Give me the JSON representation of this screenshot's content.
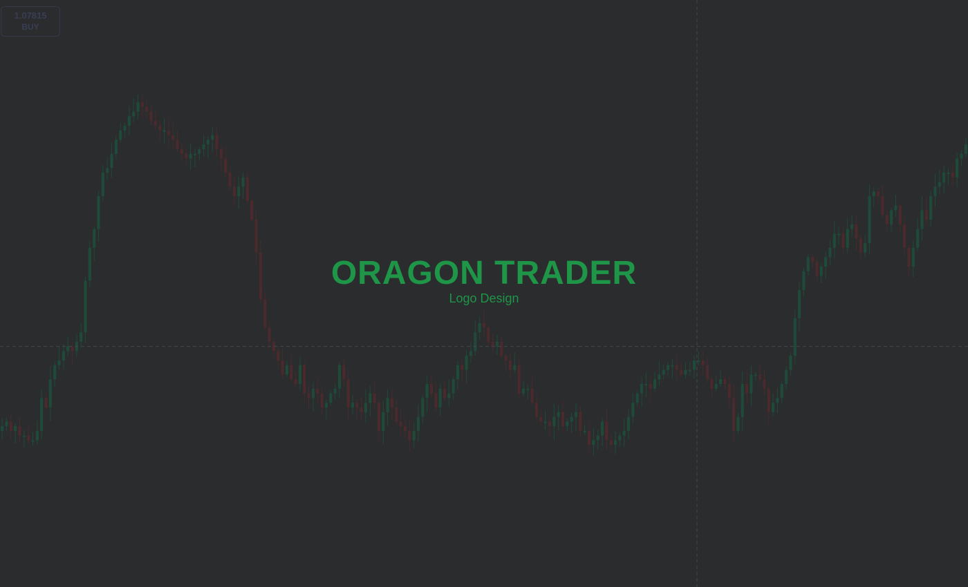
{
  "price_tag": {
    "price": "1.07815",
    "side": "BUY"
  },
  "logo": {
    "title": "ORAGON TRADER",
    "subtitle": "Logo Design"
  },
  "colors": {
    "background": "#2a2c2e",
    "logo": "#1f9548",
    "bull_candle": "#1f4a3a",
    "bear_candle": "#4a2a2c",
    "crosshair": "#44484c"
  },
  "chart_data": {
    "type": "candlestick",
    "title": "",
    "xlabel": "",
    "ylabel": "",
    "ylim": [
      0,
      100
    ],
    "crosshair": {
      "x_fraction": 0.72,
      "y_value": 38
    },
    "close": [
      21,
      22,
      20,
      21,
      19,
      19,
      18,
      18,
      20,
      27,
      25,
      31,
      34,
      35,
      37,
      38,
      37,
      39,
      41,
      52,
      59,
      63,
      70,
      75,
      76,
      79,
      82,
      84,
      85,
      87,
      88,
      90,
      89,
      88,
      86,
      85,
      84,
      84,
      83,
      82,
      80,
      79,
      78,
      79,
      79,
      80,
      81,
      82,
      83,
      80,
      78,
      75,
      72,
      70,
      72,
      74,
      69,
      65,
      58,
      48,
      42,
      39,
      37,
      35,
      32,
      34,
      31,
      30,
      34,
      28,
      27,
      29,
      28,
      25,
      26,
      28,
      29,
      34,
      31,
      25,
      26,
      25,
      24,
      26,
      28,
      26,
      20,
      24,
      27,
      25,
      22,
      21,
      20,
      18,
      20,
      23,
      27,
      30,
      28,
      25,
      29,
      27,
      28,
      31,
      34,
      33,
      36,
      37,
      41,
      43,
      42,
      39,
      38,
      39,
      36,
      35,
      33,
      34,
      28,
      29,
      29,
      26,
      23,
      22,
      22,
      21,
      23,
      24,
      21,
      22,
      23,
      24,
      20,
      20,
      17,
      18,
      19,
      22,
      18,
      17,
      18,
      19,
      20,
      23,
      26,
      28,
      30,
      30,
      29,
      31,
      32,
      33,
      34,
      34,
      33,
      32,
      33,
      33,
      35,
      35,
      34,
      31,
      29,
      30,
      31,
      30,
      27,
      20,
      23,
      30,
      28,
      32,
      32,
      31,
      29,
      24,
      26,
      27,
      30,
      33,
      36,
      44,
      50,
      54,
      57,
      56,
      53,
      55,
      57,
      59,
      62,
      62,
      59,
      63,
      64,
      61,
      58,
      60,
      70,
      71,
      70,
      66,
      64,
      67,
      68,
      64,
      59,
      55,
      59,
      63,
      67,
      65,
      70,
      72,
      73,
      75,
      75,
      74,
      78,
      79,
      81
    ]
  }
}
